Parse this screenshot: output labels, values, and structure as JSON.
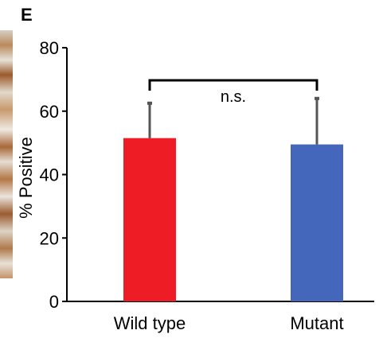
{
  "panel_label": "E",
  "chart_data": {
    "type": "bar",
    "title": "",
    "xlabel": "",
    "ylabel": "% Positive",
    "ylim": [
      0,
      80
    ],
    "yticks": [
      0,
      20,
      40,
      60,
      80
    ],
    "categories": [
      "Wild type",
      "Mutant"
    ],
    "values": [
      51.5,
      49.5
    ],
    "error_upper": [
      62.5,
      64
    ],
    "colors": [
      "#ee1c25",
      "#4466bb"
    ],
    "error_color": "#555555",
    "grid": false,
    "legend": "none",
    "annotations": [
      {
        "text": "n.s.",
        "between": [
          "Wild type",
          "Mutant"
        ]
      }
    ]
  }
}
